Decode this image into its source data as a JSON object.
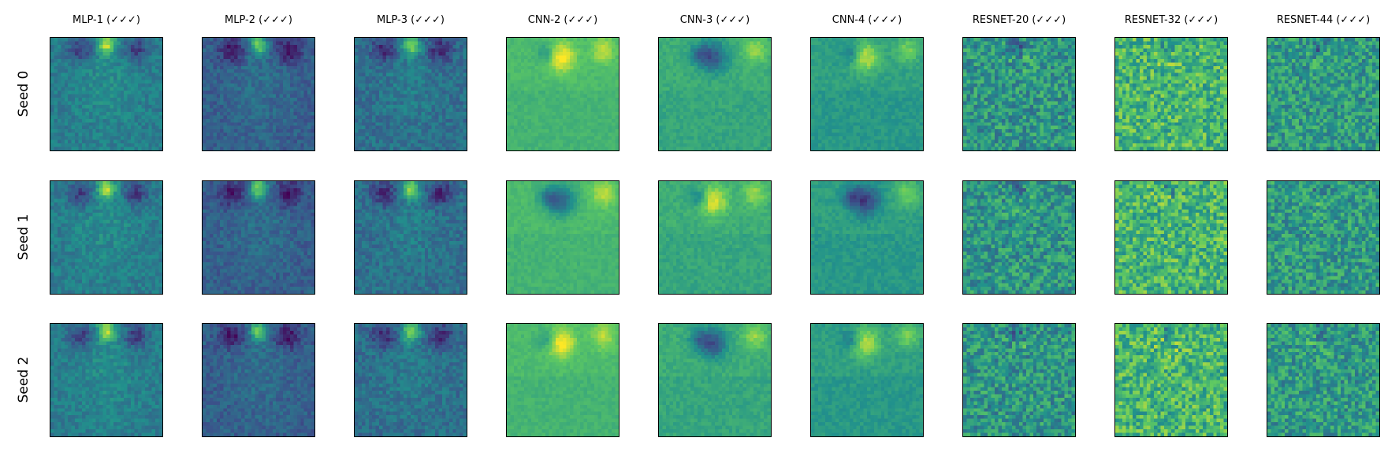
{
  "column_titles": [
    "MLP-1 (✓✓✓)",
    "MLP-2 (✓✓✓)",
    "MLP-3 (✓✓✓)",
    "CNN-2 (✓✓✓)",
    "CNN-3 (✓✓✓)",
    "CNN-4 (✓✓✓)",
    "RESNET-20 (✓✓✓)",
    "RESNET-32 (✓✓✓)",
    "RESNET-44 (✓✓✓)"
  ],
  "row_labels": [
    "Seed 0",
    "Seed 1",
    "Seed 2"
  ],
  "colormap": "viridis",
  "colormap_stops": [
    "#440154",
    "#3b528b",
    "#21918c",
    "#5ec962",
    "#fde725"
  ]
}
